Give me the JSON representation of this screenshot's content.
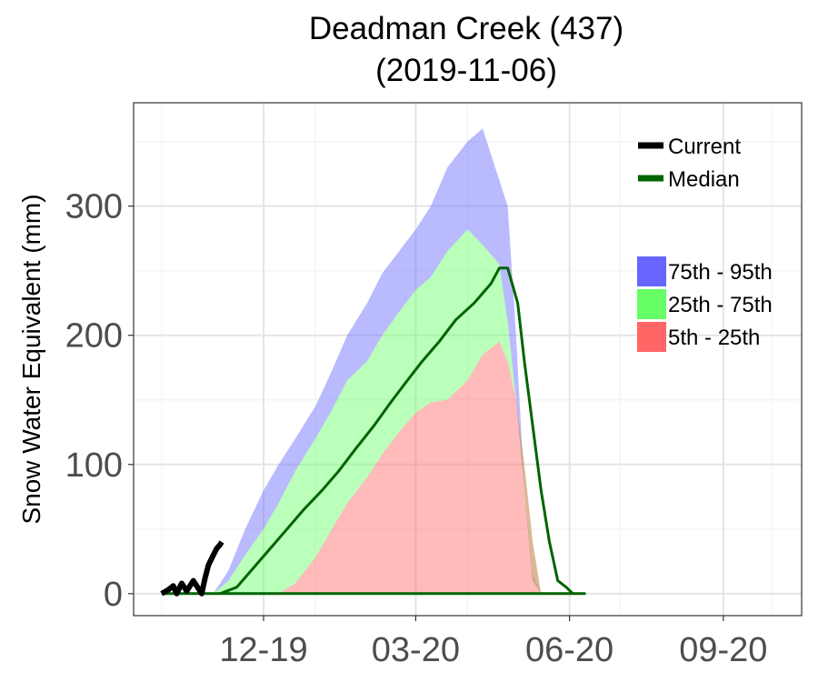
{
  "chart_data": {
    "type": "area",
    "title": "Deadman Creek (437)",
    "subtitle": "(2019-11-06)",
    "xlabel": "",
    "ylabel": "Snow Water Equivalent (mm)",
    "x_ticks": [
      "12-19",
      "03-20",
      "06-20",
      "09-20"
    ],
    "y_ticks": [
      0,
      100,
      200,
      300
    ],
    "ylim": [
      -17,
      380
    ],
    "grid": true,
    "legend_position": "top-right",
    "legend": {
      "lines": [
        {
          "label": "Current",
          "color": "#000000"
        },
        {
          "label": "Median",
          "color": "#006400"
        }
      ],
      "bands": [
        {
          "label": "75th - 95th",
          "color": "#6666ff"
        },
        {
          "label": "25th - 75th",
          "color": "#66ff66"
        },
        {
          "label": "5th - 25th",
          "color": "#ff6666"
        }
      ]
    },
    "band_colors": {
      "p5_25": "#ff6666",
      "p25_75": "#66ff66",
      "p75_95": "#6666ff"
    },
    "date_format": "MM-YY",
    "percentile_series": {
      "x": [
        "10-01",
        "10-15",
        "10-25",
        "11-01",
        "11-10",
        "11-20",
        "12-01",
        "12-10",
        "12-20",
        "01-01",
        "01-10",
        "01-20",
        "02-01",
        "02-10",
        "02-20",
        "03-01",
        "03-10",
        "03-20",
        "04-01",
        "04-10",
        "04-20",
        "04-25",
        "04-30",
        "05-05",
        "05-10",
        "05-15",
        "05-20",
        "05-25",
        "05-30",
        "06-05",
        "06-10",
        "06-15",
        "06-20",
        "06-25",
        "07-01",
        "08-01",
        "09-01",
        "10-01"
      ],
      "p5": [
        0,
        0,
        0,
        0,
        0,
        0,
        0,
        0,
        0,
        0,
        0,
        0,
        0,
        0,
        0,
        0,
        0,
        0,
        0,
        0,
        0,
        0,
        0,
        0,
        0,
        0,
        0,
        0,
        0,
        0,
        0,
        0,
        0,
        0,
        0,
        0,
        0,
        0
      ],
      "p25": [
        0,
        0,
        0,
        0,
        0,
        0,
        0,
        0,
        8,
        28,
        48,
        70,
        90,
        108,
        125,
        140,
        148,
        150,
        165,
        185,
        195,
        180,
        150,
        100,
        40,
        0,
        0,
        0,
        0,
        0,
        0,
        0,
        0,
        0,
        0,
        0,
        0,
        0
      ],
      "p50": [
        0,
        0,
        0,
        0,
        2,
        20,
        38,
        55,
        75,
        98,
        118,
        140,
        162,
        180,
        198,
        212,
        225,
        240,
        250,
        253,
        230,
        170,
        90,
        20,
        0,
        0,
        0,
        0,
        0,
        0,
        0,
        0,
        0,
        0,
        0,
        0,
        0,
        0
      ],
      "p75": [
        0,
        0,
        0,
        0,
        10,
        30,
        50,
        70,
        95,
        120,
        140,
        165,
        180,
        200,
        218,
        235,
        245,
        265,
        282,
        270,
        255,
        210,
        150,
        80,
        10,
        0,
        0,
        0,
        0,
        0,
        0,
        0,
        0,
        0,
        0,
        0,
        0,
        0
      ],
      "p95": [
        0,
        0,
        0,
        0,
        18,
        50,
        80,
        100,
        120,
        145,
        170,
        200,
        225,
        248,
        265,
        282,
        300,
        330,
        350,
        360,
        320,
        300,
        200,
        80,
        15,
        0,
        0,
        0,
        0,
        0,
        0,
        0,
        0,
        0,
        0,
        0,
        0,
        0
      ]
    },
    "median_series": {
      "x": [
        "10-01",
        "10-25",
        "11-05",
        "11-15",
        "11-25",
        "12-05",
        "12-15",
        "12-25",
        "01-05",
        "01-15",
        "01-25",
        "02-05",
        "02-15",
        "02-25",
        "03-05",
        "03-15",
        "03-25",
        "04-05",
        "04-15",
        "04-20",
        "04-25",
        "05-01",
        "05-05",
        "05-10",
        "05-15",
        "05-20",
        "05-25",
        "05-30",
        "06-03",
        "06-05",
        "06-10",
        "10-15"
      ],
      "y": [
        0,
        0,
        0,
        5,
        20,
        35,
        50,
        65,
        80,
        95,
        112,
        130,
        148,
        165,
        180,
        195,
        212,
        225,
        240,
        252,
        252,
        225,
        180,
        130,
        80,
        40,
        10,
        5,
        0,
        0,
        0,
        0
      ]
    },
    "current_series": {
      "x": [
        "10-01",
        "10-05",
        "10-08",
        "10-10",
        "10-13",
        "10-16",
        "10-20",
        "10-23",
        "10-25",
        "10-27",
        "10-29",
        "11-01",
        "11-03",
        "11-05",
        "11-06"
      ],
      "y": [
        0,
        3,
        6,
        0,
        8,
        2,
        10,
        4,
        0,
        12,
        22,
        30,
        35,
        38,
        40
      ]
    }
  }
}
